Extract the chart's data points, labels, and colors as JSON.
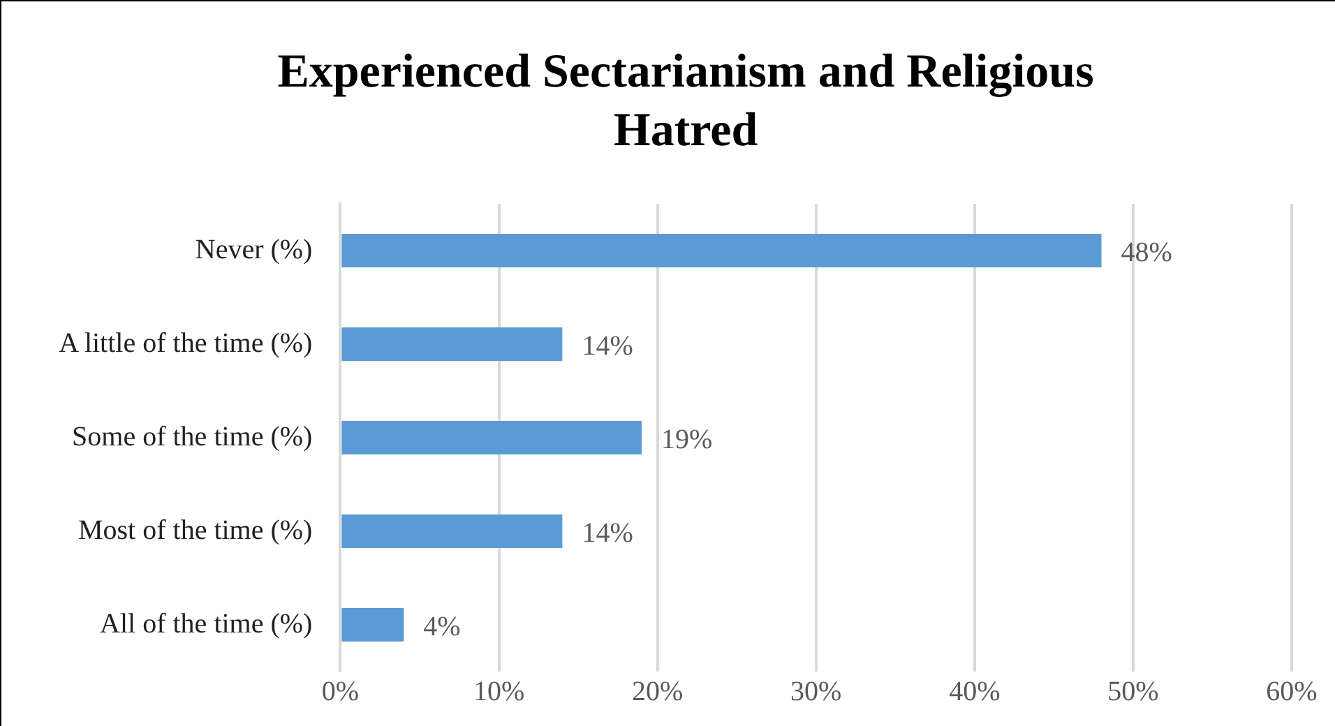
{
  "chart_data": {
    "type": "bar",
    "orientation": "horizontal",
    "title": "Experienced Sectarianism and Religious Hatred",
    "categories": [
      "Never (%)",
      "A little of the time (%)",
      "Some of the time (%)",
      "Most of the time (%)",
      "All of the time (%)"
    ],
    "values": [
      48,
      14,
      19,
      14,
      4
    ],
    "value_labels": [
      "48%",
      "14%",
      "19%",
      "14%",
      "4%"
    ],
    "color": "#5b9bd5",
    "xlim": [
      0,
      60
    ],
    "xticks": [
      {
        "value": 0,
        "label": "0%"
      },
      {
        "value": 10,
        "label": "10%"
      },
      {
        "value": 20,
        "label": "20%"
      },
      {
        "value": 30,
        "label": "30%"
      },
      {
        "value": 40,
        "label": "40%"
      },
      {
        "value": 50,
        "label": "50%"
      },
      {
        "value": 60,
        "label": "60%"
      }
    ],
    "grid": "x",
    "legend": false
  }
}
